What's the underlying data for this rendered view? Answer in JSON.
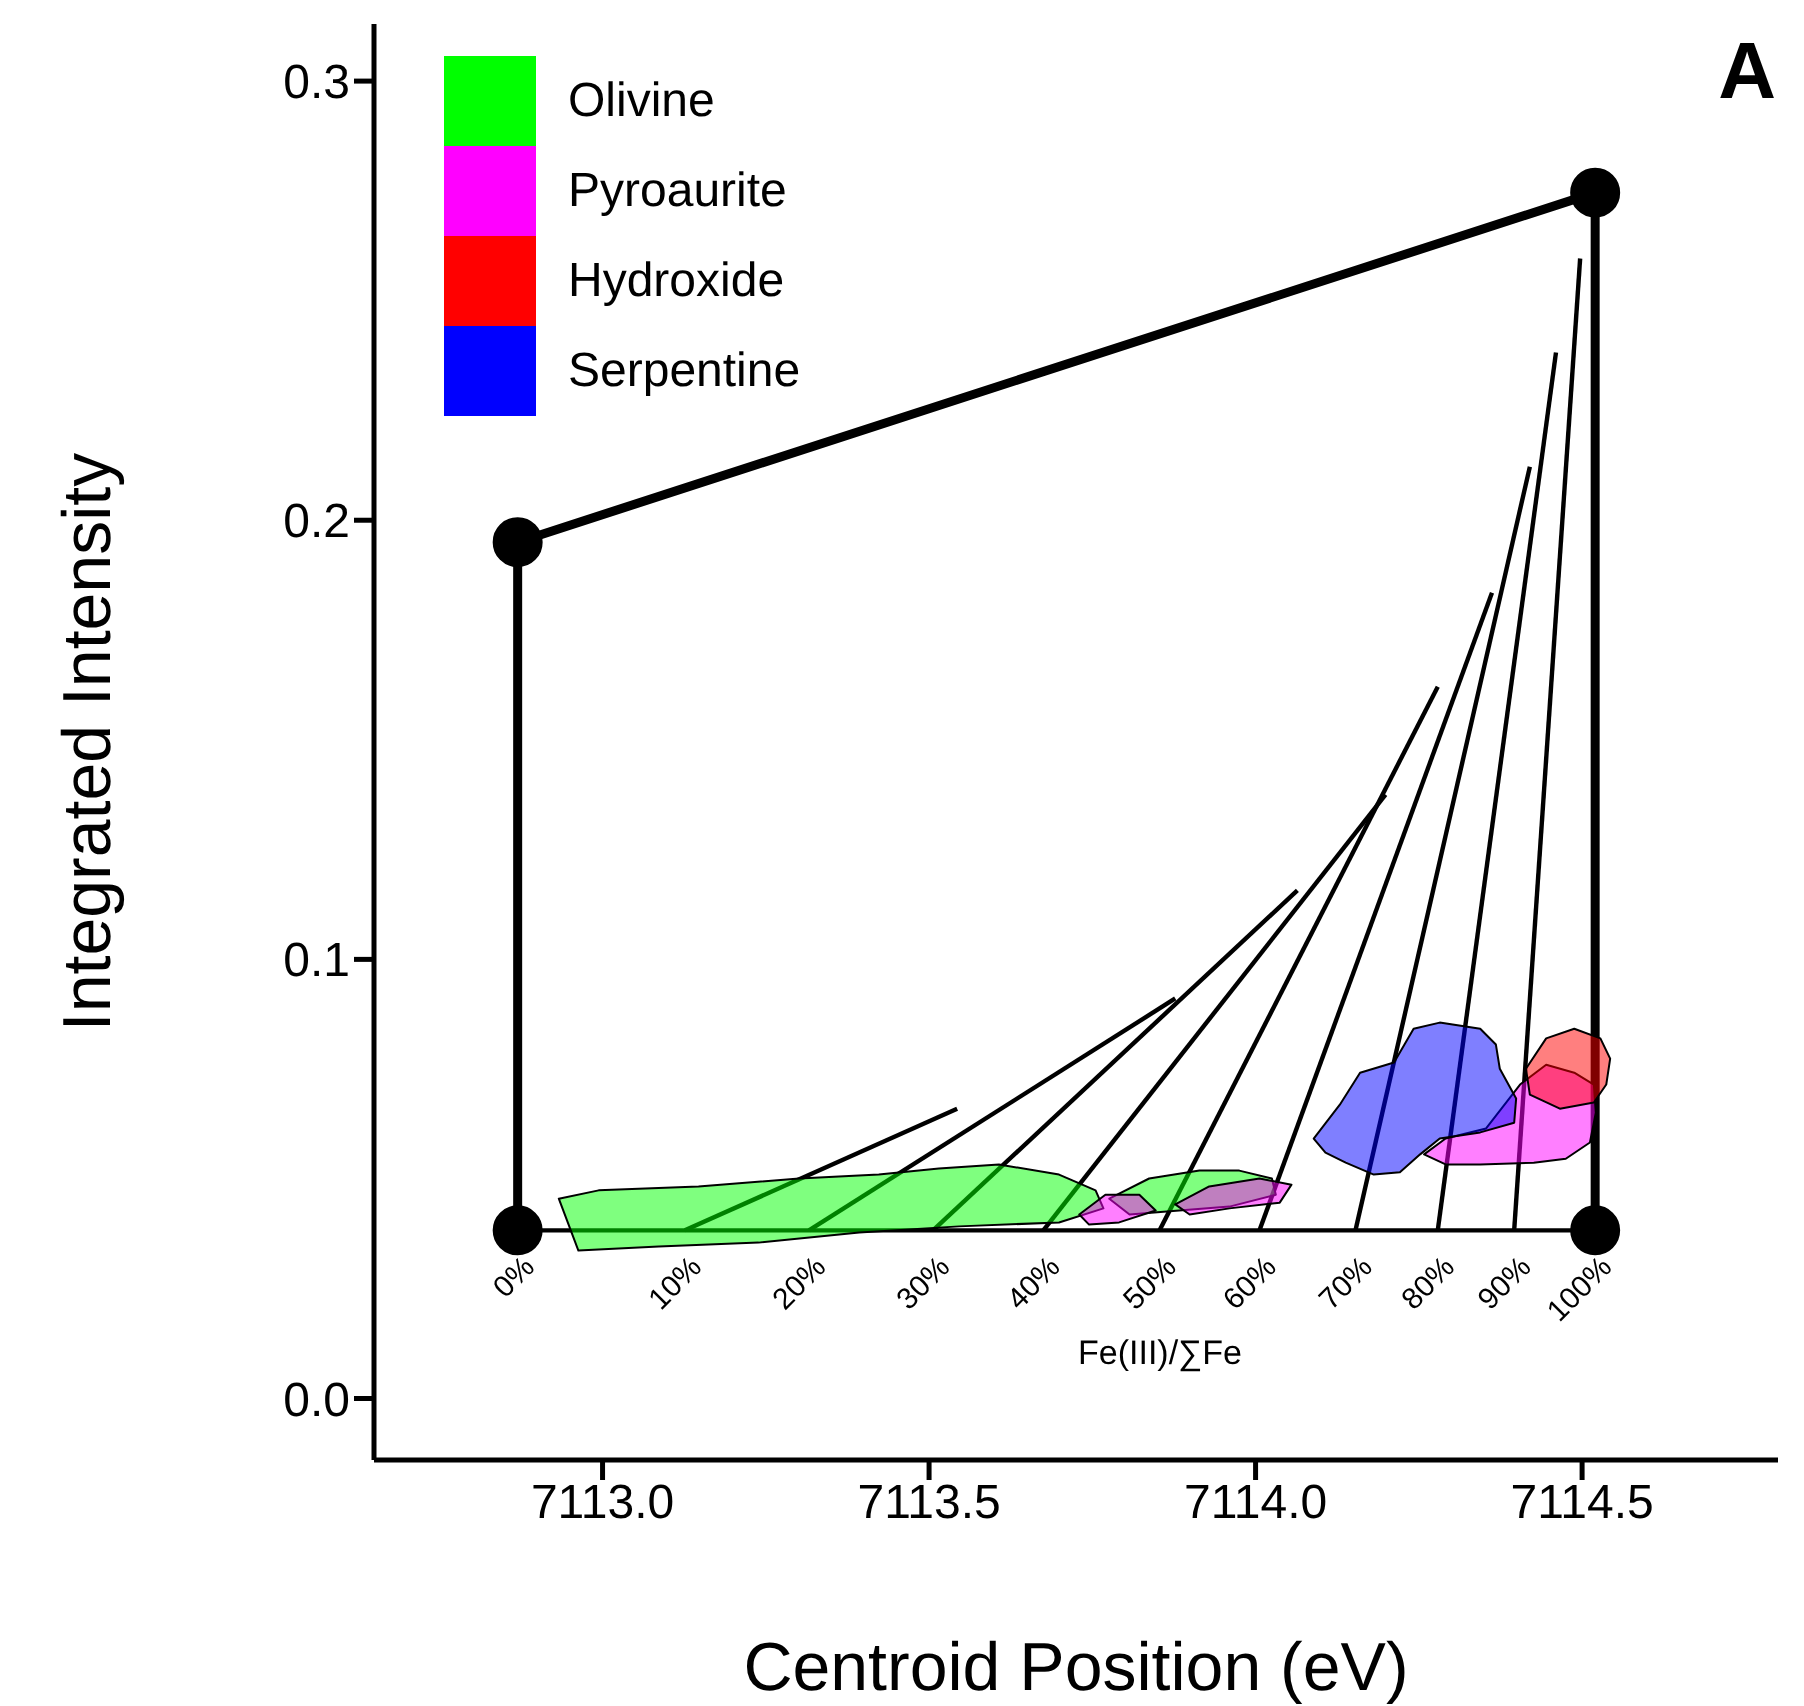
{
  "chart_data": {
    "type": "line",
    "xlabel": "Centroid Position (eV)",
    "ylabel": "Integrated Intensity",
    "xlim": [
      7112.65,
      7114.8
    ],
    "ylim": [
      -0.014,
      0.313
    ],
    "xticks": [
      {
        "value": 7113,
        "label": "7113.0"
      },
      {
        "value": 7113.5,
        "label": "7113.5"
      },
      {
        "value": 7114,
        "label": "7114.0"
      },
      {
        "value": 7114.5,
        "label": "7114.5"
      }
    ],
    "yticks": [
      {
        "value": 0,
        "label": "0.0"
      },
      {
        "value": 0.1,
        "label": "0.1"
      },
      {
        "value": 0.2,
        "label": "0.2"
      },
      {
        "value": 0.3,
        "label": "0.3"
      }
    ],
    "legend": "top left",
    "grid": false,
    "series": [
      {
        "type": "area",
        "name": "Olivine",
        "color": "#00ff00",
        "x": [
          7112.933,
          7112.994,
          7113.147,
          7113.301,
          7113.423,
          7113.515,
          7113.607,
          7113.699,
          7113.755,
          7113.767,
          7113.699,
          7113.546,
          7113.393,
          7113.239,
          7113.086,
          7112.963,
          null,
          7113.776,
          7113.837,
          7113.914,
          7113.975,
          7114.025,
          7114.031,
          7113.96,
          7113.883,
          7113.807
        ],
        "values": [
          0.0455,
          0.0474,
          0.0483,
          0.0501,
          0.051,
          0.0524,
          0.0533,
          0.051,
          0.0474,
          0.0433,
          0.0401,
          0.0392,
          0.0378,
          0.0355,
          0.0346,
          0.0337,
          null,
          0.0455,
          0.0501,
          0.0519,
          0.0519,
          0.0501,
          0.0464,
          0.0437,
          0.0428,
          0.0419
        ]
      },
      {
        "type": "area",
        "name": "Pyroaurite",
        "color": "#ff00ff",
        "x": [
          7113.73,
          7113.77,
          7113.822,
          7113.847,
          7113.791,
          7113.745,
          null,
          7113.877,
          7113.929,
          7114.006,
          7114.055,
          7114.037,
          7113.96,
          7113.899,
          null,
          7114.258,
          7114.291,
          7114.353,
          7114.405,
          7114.445,
          7114.488,
          7114.518,
          7114.521,
          7114.512,
          7114.475,
          7114.426,
          7114.344,
          7114.291
        ],
        "values": [
          0.0419,
          0.0464,
          0.0464,
          0.0428,
          0.0401,
          0.0396,
          null,
          0.0442,
          0.0483,
          0.0501,
          0.0487,
          0.0446,
          0.0433,
          0.0419,
          null,
          0.0556,
          0.0592,
          0.0615,
          0.0715,
          0.076,
          0.0742,
          0.0715,
          0.0651,
          0.0583,
          0.0546,
          0.0537,
          0.0533,
          0.0533
        ]
      },
      {
        "type": "area",
        "name": "Hydroxide",
        "color": "#ff0000",
        "x": [
          7114.414,
          7114.445,
          7114.488,
          7114.528,
          7114.543,
          7114.537,
          7114.518,
          7114.466,
          7114.42
        ],
        "values": [
          0.0751,
          0.082,
          0.0842,
          0.082,
          0.0774,
          0.0715,
          0.0674,
          0.066,
          0.0692
        ]
      },
      {
        "type": "area",
        "name": "Serpentine",
        "color": "#0000ff",
        "x": [
          7114.089,
          7114.129,
          7114.16,
          7114.212,
          7114.242,
          7114.282,
          7114.344,
          7114.368,
          7114.374,
          7114.399,
          7114.396,
          7114.344,
          7114.282,
          7114.252,
          7114.221,
          7114.181,
          7114.138,
          7114.107
        ],
        "values": [
          0.0592,
          0.0669,
          0.0742,
          0.0765,
          0.0842,
          0.0856,
          0.0842,
          0.0806,
          0.0751,
          0.0683,
          0.0628,
          0.0606,
          0.0592,
          0.0556,
          0.0515,
          0.051,
          0.0537,
          0.056
        ]
      },
      {
        "color": "#000000",
        "marker": "circle",
        "x": [
          7112.87,
          7112.87,
          7114.52,
          7114.52
        ],
        "values": [
          0.0383,
          0.195,
          0.2746,
          0.0383
        ]
      },
      {
        "color": "#000000",
        "x": [
          7112.87,
          7114.52
        ],
        "values": [
          0.0383,
          0.0383
        ]
      },
      {
        "color": "#000000",
        "x": [
          7113.126,
          7113.543
        ],
        "values": [
          0.0383,
          0.066
        ]
      },
      {
        "color": "#000000",
        "x": [
          7113.316,
          7113.877
        ],
        "values": [
          0.0383,
          0.0911
        ]
      },
      {
        "color": "#000000",
        "x": [
          7113.506,
          7114.064
        ],
        "values": [
          0.0383,
          0.1157
        ]
      },
      {
        "color": "#000000",
        "x": [
          7113.675,
          7114.199
        ],
        "values": [
          0.0383,
          0.1375
        ]
      },
      {
        "color": "#000000",
        "x": [
          7113.853,
          7114.279
        ],
        "values": [
          0.0383,
          0.1621
        ]
      },
      {
        "color": "#000000",
        "x": [
          7114.006,
          7114.362
        ],
        "values": [
          0.0383,
          0.1835
        ]
      },
      {
        "color": "#000000",
        "x": [
          7114.153,
          7114.42
        ],
        "values": [
          0.0383,
          0.2122
        ]
      },
      {
        "color": "#000000",
        "x": [
          7114.279,
          7114.46
        ],
        "values": [
          0.0383,
          0.2382
        ]
      },
      {
        "color": "#000000",
        "x": [
          7114.396,
          7114.497
        ],
        "values": [
          0.0383,
          0.2596
        ]
      }
    ],
    "annotations": [
      "Fe(III)/∑Fe",
      {
        "text": "0%",
        "x": 7112.87,
        "y": 0.0383
      },
      {
        "text": "10%",
        "x": 7113.126,
        "y": 0.0383
      },
      {
        "text": "20%",
        "x": 7113.316,
        "y": 0.0383
      },
      {
        "text": "30%",
        "x": 7113.506,
        "y": 0.0383
      },
      {
        "text": "40%",
        "x": 7113.675,
        "y": 0.0383
      },
      {
        "text": "50%",
        "x": 7113.853,
        "y": 0.0383
      },
      {
        "text": "60%",
        "x": 7114.006,
        "y": 0.0383
      },
      {
        "text": "70%",
        "x": 7114.153,
        "y": 0.0383
      },
      {
        "text": "80%",
        "x": 7114.279,
        "y": 0.0383
      },
      {
        "text": "90%",
        "x": 7114.396,
        "y": 0.0383
      },
      {
        "text": "100%",
        "x": 7114.52,
        "y": 0.0383
      },
      "A"
    ]
  }
}
